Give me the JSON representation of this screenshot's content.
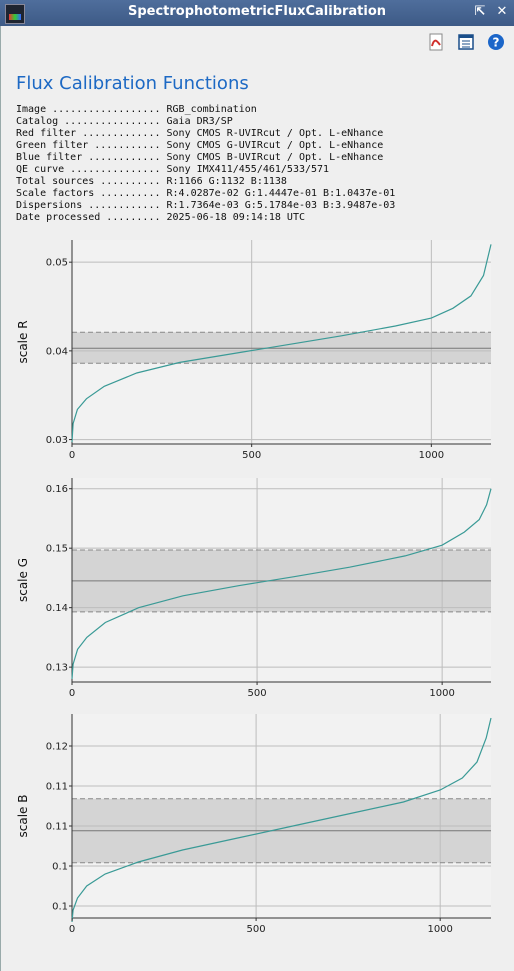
{
  "window": {
    "title": "SpectrophotometricFluxCalibration"
  },
  "toolbar": {
    "pdf_icon": "pdf-icon",
    "doc_icon": "document-icon",
    "help_icon": "help-icon"
  },
  "heading": "Flux Calibration Functions",
  "info": [
    "Image .................. RGB_combination",
    "Catalog ................ Gaia DR3/SP",
    "Red filter ............. Sony CMOS R-UVIRcut / Opt. L-eNhance",
    "Green filter ........... Sony CMOS G-UVIRcut / Opt. L-eNhance",
    "Blue filter ............ Sony CMOS B-UVIRcut / Opt. L-eNhance",
    "QE curve ............... Sony IMX411/455/461/533/571",
    "Total sources .......... R:1166 G:1132 B:1138",
    "Scale factors .......... R:4.0287e-02 G:1.4447e-01 B:1.0437e-01",
    "Dispersions ............ R:1.7364e-03 G:5.1784e-03 B:3.9487e-03",
    "Date processed ......... 2025-06-18 09:14:18 UTC"
  ],
  "colors": {
    "curve": "#3a9a96",
    "band": "#d4d4d4",
    "accent": "#1d69c4"
  },
  "chart_data": [
    {
      "type": "line",
      "ylabel": "scale R",
      "xlim": [
        0,
        1166
      ],
      "ylim": [
        0.0295,
        0.0525
      ],
      "yticks": [
        0.03,
        0.04,
        0.05
      ],
      "ytick_labels": [
        "0.03",
        "0.04",
        "0.05"
      ],
      "xticks": [
        0,
        500,
        1000
      ],
      "xtick_labels": [
        "0",
        "500",
        "1000"
      ],
      "center": 0.0403,
      "band": [
        0.0386,
        0.0421
      ],
      "n": 1166,
      "curve": [
        [
          0,
          0.0297
        ],
        [
          3,
          0.0318
        ],
        [
          15,
          0.0334
        ],
        [
          40,
          0.0346
        ],
        [
          90,
          0.036
        ],
        [
          180,
          0.0375
        ],
        [
          300,
          0.0387
        ],
        [
          450,
          0.0397
        ],
        [
          600,
          0.0407
        ],
        [
          750,
          0.0417
        ],
        [
          900,
          0.0428
        ],
        [
          1000,
          0.0437
        ],
        [
          1060,
          0.0448
        ],
        [
          1110,
          0.0462
        ],
        [
          1145,
          0.0485
        ],
        [
          1166,
          0.052
        ]
      ]
    },
    {
      "type": "line",
      "ylabel": "scale G",
      "xlim": [
        0,
        1132
      ],
      "ylim": [
        0.1275,
        0.1618
      ],
      "yticks": [
        0.13,
        0.14,
        0.15,
        0.16
      ],
      "ytick_labels": [
        "0.13",
        "0.14",
        "0.15",
        "0.16"
      ],
      "xticks": [
        0,
        500,
        1000
      ],
      "xtick_labels": [
        "0",
        "500",
        "1000"
      ],
      "center": 0.1445,
      "band": [
        0.1393,
        0.1497
      ],
      "n": 1132,
      "curve": [
        [
          0,
          0.128
        ],
        [
          3,
          0.1305
        ],
        [
          15,
          0.133
        ],
        [
          40,
          0.135
        ],
        [
          90,
          0.1375
        ],
        [
          180,
          0.14
        ],
        [
          300,
          0.142
        ],
        [
          450,
          0.1437
        ],
        [
          600,
          0.1452
        ],
        [
          750,
          0.1468
        ],
        [
          900,
          0.1487
        ],
        [
          1000,
          0.1505
        ],
        [
          1060,
          0.1527
        ],
        [
          1100,
          0.1548
        ],
        [
          1120,
          0.1573
        ],
        [
          1132,
          0.16
        ]
      ]
    },
    {
      "type": "line",
      "ylabel": "scale B",
      "xlim": [
        0,
        1138
      ],
      "ylim": [
        0.0935,
        0.119
      ],
      "yticks": [
        0.095,
        0.1,
        0.105,
        0.11,
        0.115
      ],
      "ytick_labels": [
        "0.1",
        "0.1",
        "0.11",
        "0.11",
        "0.12"
      ],
      "xticks": [
        0,
        500,
        1000
      ],
      "xtick_labels": [
        "0",
        "500",
        "1000"
      ],
      "center": 0.1044,
      "band": [
        0.1004,
        0.1084
      ],
      "n": 1138,
      "curve": [
        [
          0,
          0.093
        ],
        [
          3,
          0.0945
        ],
        [
          15,
          0.096
        ],
        [
          40,
          0.0975
        ],
        [
          90,
          0.099
        ],
        [
          180,
          0.1005
        ],
        [
          300,
          0.102
        ],
        [
          450,
          0.1035
        ],
        [
          600,
          0.105
        ],
        [
          750,
          0.1065
        ],
        [
          900,
          0.108
        ],
        [
          1000,
          0.1095
        ],
        [
          1060,
          0.111
        ],
        [
          1100,
          0.113
        ],
        [
          1125,
          0.116
        ],
        [
          1138,
          0.1185
        ]
      ]
    }
  ]
}
